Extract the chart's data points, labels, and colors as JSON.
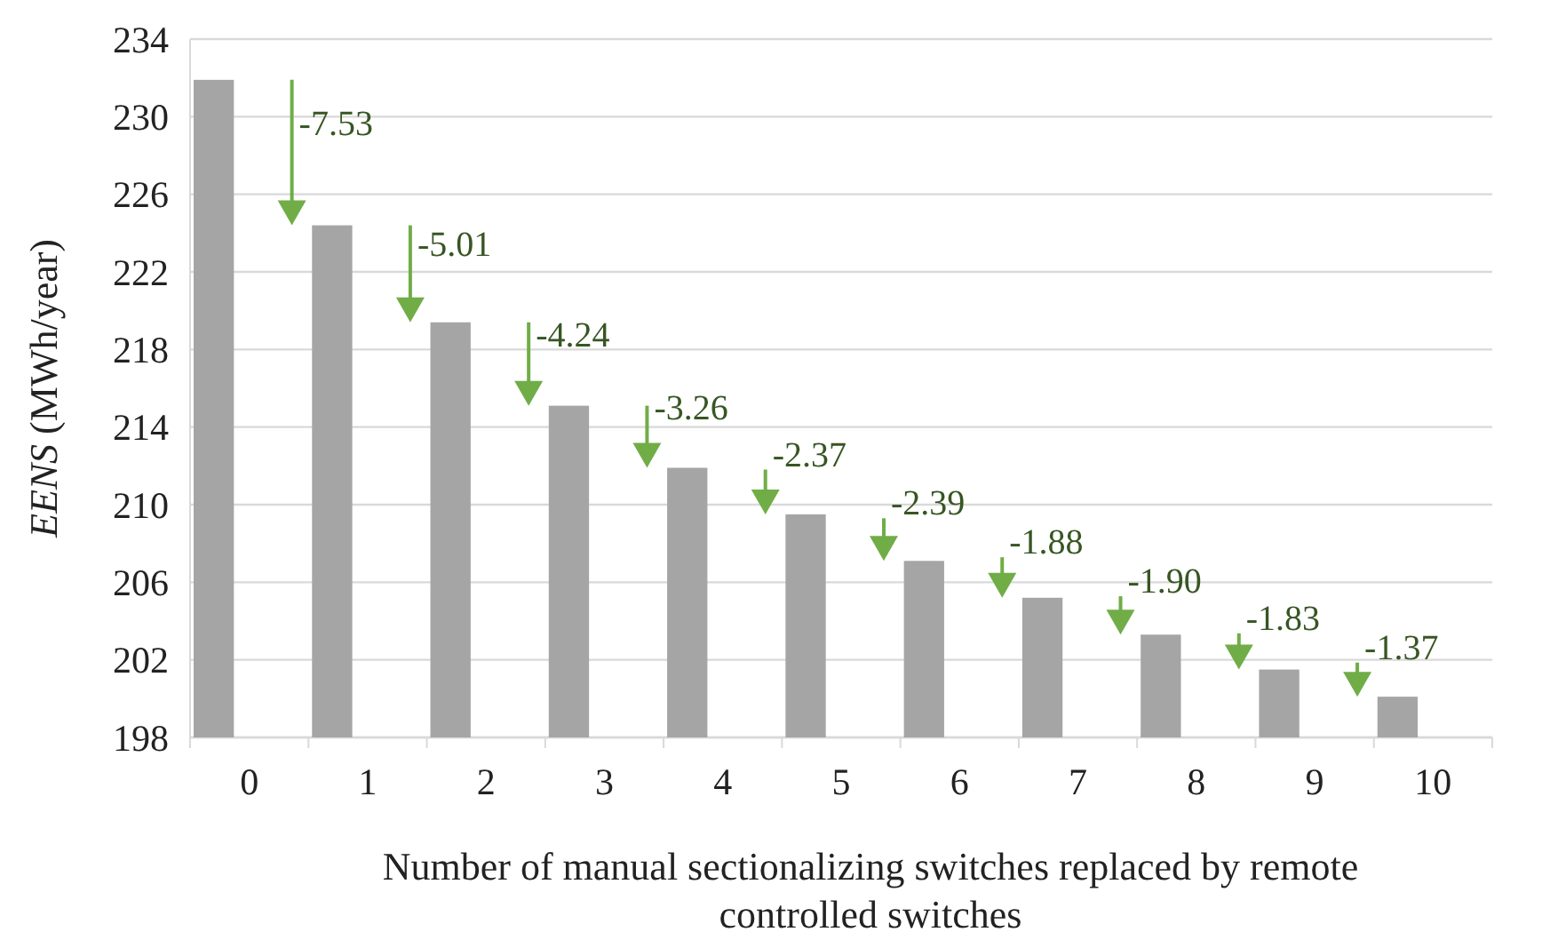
{
  "chart_data": {
    "type": "bar",
    "xlabel": "Number of manual sectionalizing switches replaced by remote controlled switches",
    "ylabel": "EENS (MWh/year)",
    "categories": [
      "0",
      "1",
      "2",
      "3",
      "4",
      "5",
      "6",
      "7",
      "8",
      "9",
      "10"
    ],
    "values": [
      231.9,
      224.4,
      219.4,
      215.1,
      211.9,
      209.5,
      207.1,
      205.2,
      203.3,
      201.5,
      200.1
    ],
    "color": "#a5a5a5",
    "ylim": [
      198,
      234
    ],
    "yticks": [
      198,
      202,
      206,
      210,
      214,
      218,
      222,
      226,
      230,
      234
    ],
    "grid": "y",
    "annotations": [
      "-7.53",
      "-5.01",
      "-4.24",
      "-3.26",
      "-2.37",
      "-2.39",
      "-1.88",
      "-1.90",
      "-1.83",
      "-1.37"
    ]
  }
}
